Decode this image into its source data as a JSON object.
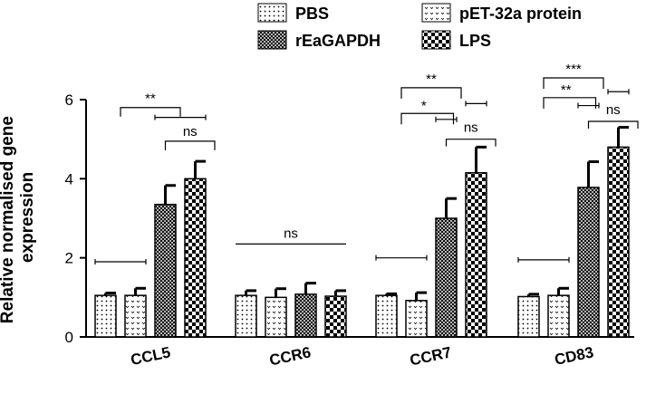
{
  "chart_data": {
    "type": "bar",
    "categories": [
      "CCL5",
      "CCR6",
      "CCR7",
      "CD83"
    ],
    "ylabel_lines": [
      "Relative normalised gene",
      "expression"
    ],
    "ylim": [
      0,
      6
    ],
    "yticks": [
      "0",
      "2",
      "4",
      "6"
    ],
    "legend_position": "top",
    "grid": false,
    "series": [
      {
        "name": "PBS",
        "pattern": "dots",
        "values": [
          1.05,
          1.05,
          1.05,
          1.02
        ],
        "errors": [
          0.06,
          0.12,
          0.04,
          0.06
        ]
      },
      {
        "name": "pET-32a protein",
        "pattern": "ticks",
        "values": [
          1.05,
          1.0,
          0.92,
          1.05
        ],
        "errors": [
          0.18,
          0.22,
          0.2,
          0.18
        ]
      },
      {
        "name": "rEaGAPDH",
        "pattern": "crosshatch",
        "values": [
          3.35,
          1.08,
          3.0,
          3.78
        ],
        "errors": [
          0.48,
          0.28,
          0.5,
          0.65
        ]
      },
      {
        "name": "LPS",
        "pattern": "checker",
        "values": [
          4.0,
          1.03,
          4.15,
          4.8
        ],
        "errors": [
          0.44,
          0.14,
          0.65,
          0.5
        ]
      }
    ],
    "annotations": [
      {
        "category": "CCL5",
        "label": "**"
      },
      {
        "category": "CCL5",
        "label": "ns"
      },
      {
        "category": "CCR6",
        "label": "ns"
      },
      {
        "category": "CCR7",
        "label": "**"
      },
      {
        "category": "CCR7",
        "label": "*"
      },
      {
        "category": "CCR7",
        "label": "ns"
      },
      {
        "category": "CD83",
        "label": "***"
      },
      {
        "category": "CD83",
        "label": "**"
      },
      {
        "category": "CD83",
        "label": "ns"
      }
    ]
  }
}
